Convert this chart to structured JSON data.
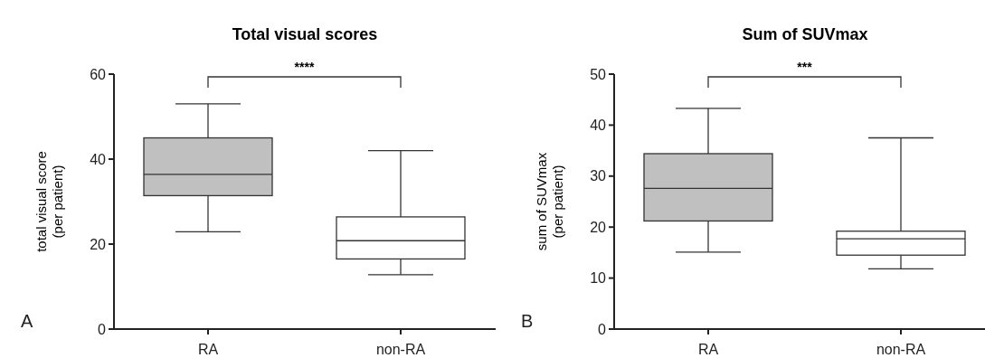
{
  "chart_data": [
    {
      "type": "box",
      "title": "Total visual scores",
      "ylabel": "total visual score\n(per patient)",
      "categories": [
        "RA",
        "non-RA"
      ],
      "colors": [
        "#c0c0c0",
        "#ffffff"
      ],
      "boxes": [
        {
          "low": 22.9,
          "q1": 31.4,
          "median": 36.4,
          "q3": 45,
          "high": 53
        },
        {
          "low": 12.8,
          "q1": 16.5,
          "median": 20.8,
          "q3": 26.4,
          "high": 42
        }
      ],
      "ylim": [
        0,
        60
      ],
      "yticks": [
        0,
        20,
        40,
        60
      ],
      "grid": false,
      "annotations": [
        "****",
        "A"
      ]
    },
    {
      "type": "box",
      "title": "Sum of SUVmax",
      "ylabel": "sum of SUVmax\n(per patient)",
      "categories": [
        "RA",
        "non-RA"
      ],
      "colors": [
        "#c0c0c0",
        "#ffffff"
      ],
      "boxes": [
        {
          "low": 15.1,
          "q1": 21.2,
          "median": 27.6,
          "q3": 34.4,
          "high": 43.3
        },
        {
          "low": 11.8,
          "q1": 14.5,
          "median": 17.7,
          "q3": 19.2,
          "high": 37.5
        }
      ],
      "ylim": [
        0,
        50
      ],
      "yticks": [
        0,
        10,
        20,
        30,
        40,
        50
      ],
      "grid": false,
      "annotations": [
        "***",
        "B"
      ]
    }
  ]
}
